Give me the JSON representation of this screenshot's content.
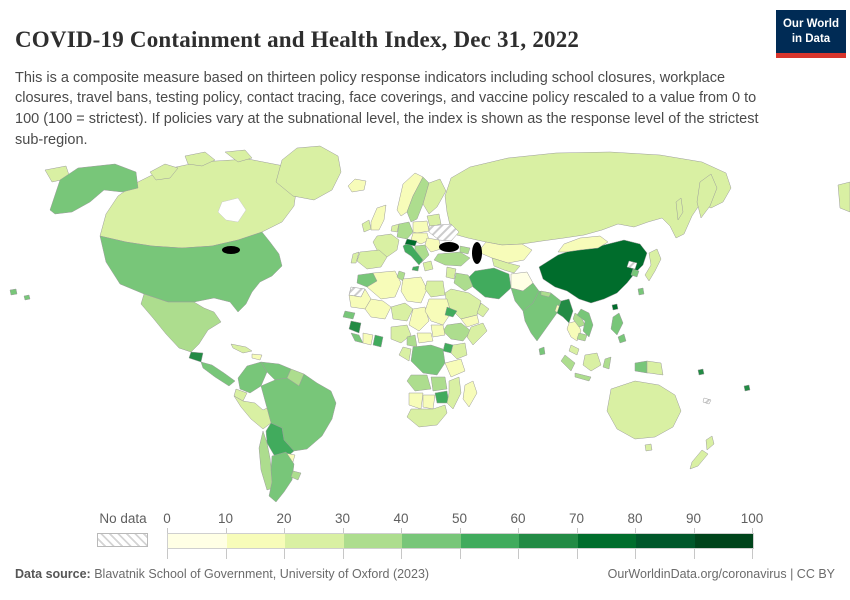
{
  "header": {
    "title": "COVID-19 Containment and Health Index, Dec 31, 2022",
    "subtitle": "This is a composite measure based on thirteen policy response indicators including school closures, workplace closures, travel bans, testing policy, contact tracing, face coverings, and vaccine policy rescaled to a value from 0 to 100 (100 = strictest). If policies vary at the subnational level, the index is shown as the response level of the strictest sub-region.",
    "logo": {
      "line1": "Our World",
      "line2": "in Data",
      "bg_color": "#002b55",
      "accent_color": "#d8352c"
    }
  },
  "legend": {
    "no_data_label": "No data",
    "ticks": [
      "0",
      "10",
      "20",
      "30",
      "40",
      "50",
      "60",
      "70",
      "80",
      "90",
      "100"
    ],
    "colors": [
      "#ffffe5",
      "#f7fcb9",
      "#d9f0a3",
      "#addd8e",
      "#78c679",
      "#41ab5d",
      "#238b45",
      "#006d2c",
      "#00572a",
      "#00441b"
    ]
  },
  "footer": {
    "source_label": "Data source:",
    "source_value": " Blavatnik School of Government, University of Oxford (2023)",
    "link": "OurWorldinData.org/coronavirus | CC BY"
  },
  "chart_data": {
    "type": "heatmap",
    "subtype": "choropleth-world-map",
    "title": "COVID-19 Containment and Health Index, Dec 31, 2022",
    "unit": "index 0–100 (100 = strictest)",
    "legend_bins": [
      0,
      10,
      20,
      30,
      40,
      50,
      60,
      70,
      80,
      90,
      100
    ],
    "palette": [
      "#ffffe5",
      "#f7fcb9",
      "#d9f0a3",
      "#addd8e",
      "#78c679",
      "#41ab5d",
      "#238b45",
      "#006d2c",
      "#00572a",
      "#00441b"
    ],
    "no_data_style": "hatched",
    "countries": [
      {
        "id": "usa",
        "name": "United States",
        "value_range": "40-50",
        "color": "#78c679"
      },
      {
        "id": "canada",
        "name": "Canada",
        "value_range": "20-30",
        "color": "#d9f0a3"
      },
      {
        "id": "greenland",
        "name": "Greenland",
        "value_range": "20-30",
        "color": "#d9f0a3"
      },
      {
        "id": "iceland",
        "name": "Iceland",
        "value_range": "10-20",
        "color": "#f7fcb9"
      },
      {
        "id": "mexico",
        "name": "Mexico",
        "value_range": "30-40",
        "color": "#addd8e"
      },
      {
        "id": "guatemala",
        "name": "Guatemala",
        "value_range": "60-70",
        "color": "#238b45"
      },
      {
        "id": "central-america",
        "name": "Central America",
        "value_range": "40-50",
        "color": "#78c679"
      },
      {
        "id": "cuba",
        "name": "Cuba",
        "value_range": "20-30",
        "color": "#d9f0a3"
      },
      {
        "id": "hispaniola",
        "name": "Haiti / Dominican Rep.",
        "value_range": "10-20",
        "color": "#f7fcb9"
      },
      {
        "id": "hawaii",
        "name": "Hawaii (US)",
        "value_range": "40-50",
        "color": "#78c679"
      },
      {
        "id": "colombia",
        "name": "Colombia",
        "value_range": "40-50",
        "color": "#78c679"
      },
      {
        "id": "venezuela",
        "name": "Venezuela",
        "value_range": "40-50",
        "color": "#78c679"
      },
      {
        "id": "guianas",
        "name": "Guyana / Suriname",
        "value_range": "30-40",
        "color": "#addd8e"
      },
      {
        "id": "brazil",
        "name": "Brazil",
        "value_range": "40-50",
        "color": "#78c679"
      },
      {
        "id": "ecuador",
        "name": "Ecuador",
        "value_range": "20-30",
        "color": "#d9f0a3"
      },
      {
        "id": "peru",
        "name": "Peru",
        "value_range": "20-30",
        "color": "#d9f0a3"
      },
      {
        "id": "bolivia",
        "name": "Bolivia",
        "value_range": "50-60",
        "color": "#41ab5d"
      },
      {
        "id": "paraguay",
        "name": "Paraguay",
        "value_range": "10-20",
        "color": "#f7fcb9"
      },
      {
        "id": "chile",
        "name": "Chile",
        "value_range": "30-40",
        "color": "#addd8e"
      },
      {
        "id": "argentina",
        "name": "Argentina",
        "value_range": "40-50",
        "color": "#78c679"
      },
      {
        "id": "uruguay",
        "name": "Uruguay",
        "value_range": "30-40",
        "color": "#addd8e"
      },
      {
        "id": "uk",
        "name": "United Kingdom",
        "value_range": "10-20",
        "color": "#f7fcb9"
      },
      {
        "id": "ireland",
        "name": "Ireland",
        "value_range": "20-30",
        "color": "#d9f0a3"
      },
      {
        "id": "norway",
        "name": "Norway",
        "value_range": "10-20",
        "color": "#f7fcb9"
      },
      {
        "id": "sweden",
        "name": "Sweden",
        "value_range": "30-40",
        "color": "#addd8e"
      },
      {
        "id": "finland",
        "name": "Finland",
        "value_range": "20-30",
        "color": "#d9f0a3"
      },
      {
        "id": "baltics",
        "name": "Baltics / Belarus",
        "value_range": "20-30",
        "color": "#d9f0a3"
      },
      {
        "id": "france",
        "name": "France",
        "value_range": "20-30",
        "color": "#d9f0a3"
      },
      {
        "id": "spain",
        "name": "Spain",
        "value_range": "20-30",
        "color": "#d9f0a3"
      },
      {
        "id": "portugal",
        "name": "Portugal",
        "value_range": "20-30",
        "color": "#d9f0a3"
      },
      {
        "id": "germany",
        "name": "Germany",
        "value_range": "30-40",
        "color": "#addd8e"
      },
      {
        "id": "benelux",
        "name": "Benelux",
        "value_range": "20-30",
        "color": "#d9f0a3"
      },
      {
        "id": "poland",
        "name": "Poland",
        "value_range": "10-20",
        "color": "#f7fcb9"
      },
      {
        "id": "czechia-hungary",
        "name": "Czechia / Slovakia / Hungary",
        "value_range": "10-20",
        "color": "#f7fcb9"
      },
      {
        "id": "italy",
        "name": "Italy",
        "value_range": "50-60",
        "color": "#41ab5d"
      },
      {
        "id": "austria-slovenia",
        "name": "Austria / Slovenia",
        "value_range": "70-80",
        "color": "#006d2c"
      },
      {
        "id": "balkans",
        "name": "Western Balkans",
        "value_range": "30-40",
        "color": "#addd8e"
      },
      {
        "id": "greece",
        "name": "Greece",
        "value_range": "20-30",
        "color": "#d9f0a3"
      },
      {
        "id": "romania-bulgaria",
        "name": "Romania / Bulgaria",
        "value_range": "10-20",
        "color": "#f7fcb9"
      },
      {
        "id": "ukraine",
        "name": "Ukraine",
        "value_range": "No data",
        "color": "nodata"
      },
      {
        "id": "russia",
        "name": "Russia",
        "value_range": "20-30",
        "color": "#d9f0a3"
      },
      {
        "id": "kazakhstan",
        "name": "Kazakhstan",
        "value_range": "10-20",
        "color": "#f7fcb9"
      },
      {
        "id": "turkey",
        "name": "Turkey",
        "value_range": "30-40",
        "color": "#addd8e"
      },
      {
        "id": "caucasus",
        "name": "Caucasus",
        "value_range": "30-40",
        "color": "#addd8e"
      },
      {
        "id": "levant",
        "name": "Syria / Levant",
        "value_range": "20-30",
        "color": "#d9f0a3"
      },
      {
        "id": "iraq",
        "name": "Iraq",
        "value_range": "30-40",
        "color": "#addd8e"
      },
      {
        "id": "iran",
        "name": "Iran",
        "value_range": "50-60",
        "color": "#41ab5d"
      },
      {
        "id": "saudi",
        "name": "Saudi Arabia",
        "value_range": "20-30",
        "color": "#d9f0a3"
      },
      {
        "id": "yemen",
        "name": "Yemen",
        "value_range": "10-20",
        "color": "#f7fcb9"
      },
      {
        "id": "oman",
        "name": "Oman",
        "value_range": "20-30",
        "color": "#d9f0a3"
      },
      {
        "id": "afghanistan",
        "name": "Afghanistan",
        "value_range": "0-10",
        "color": "#ffffe5"
      },
      {
        "id": "central-asia",
        "name": "Turkmenistan / Uzbekistan",
        "value_range": "20-30",
        "color": "#d9f0a3"
      },
      {
        "id": "pakistan",
        "name": "Pakistan",
        "value_range": "40-50",
        "color": "#78c679"
      },
      {
        "id": "india",
        "name": "India",
        "value_range": "40-50",
        "color": "#78c679"
      },
      {
        "id": "nepal",
        "name": "Nepal",
        "value_range": "30-40",
        "color": "#addd8e"
      },
      {
        "id": "bangladesh",
        "name": "Bangladesh",
        "value_range": "10-20",
        "color": "#f7fcb9"
      },
      {
        "id": "sri-lanka",
        "name": "Sri Lanka",
        "value_range": "40-50",
        "color": "#78c679"
      },
      {
        "id": "china",
        "name": "China",
        "value_range": "70-80",
        "color": "#006d2c"
      },
      {
        "id": "mongolia",
        "name": "Mongolia",
        "value_range": "10-20",
        "color": "#f7fcb9"
      },
      {
        "id": "myanmar",
        "name": "Myanmar",
        "value_range": "60-70",
        "color": "#238b45"
      },
      {
        "id": "thailand",
        "name": "Thailand",
        "value_range": "10-20",
        "color": "#f7fcb9"
      },
      {
        "id": "laos",
        "name": "Laos",
        "value_range": "30-40",
        "color": "#addd8e"
      },
      {
        "id": "vietnam",
        "name": "Vietnam",
        "value_range": "40-50",
        "color": "#78c679"
      },
      {
        "id": "cambodia",
        "name": "Cambodia",
        "value_range": "30-40",
        "color": "#addd8e"
      },
      {
        "id": "malaysia",
        "name": "Malaysia",
        "value_range": "20-30",
        "color": "#d9f0a3"
      },
      {
        "id": "north-korea",
        "name": "North Korea",
        "value_range": "No data",
        "color": "nodata"
      },
      {
        "id": "south-korea",
        "name": "South Korea",
        "value_range": "40-50",
        "color": "#78c679"
      },
      {
        "id": "japan",
        "name": "Japan",
        "value_range": "20-30",
        "color": "#d9f0a3"
      },
      {
        "id": "taiwan",
        "name": "Taiwan",
        "value_range": "40-50",
        "color": "#78c679"
      },
      {
        "id": "philippines",
        "name": "Philippines",
        "value_range": "40-50",
        "color": "#78c679"
      },
      {
        "id": "sumatra",
        "name": "Indonesia (Sumatra)",
        "value_range": "30-40",
        "color": "#addd8e"
      },
      {
        "id": "java",
        "name": "Indonesia (Java)",
        "value_range": "30-40",
        "color": "#addd8e"
      },
      {
        "id": "borneo",
        "name": "Borneo",
        "value_range": "20-30",
        "color": "#d9f0a3"
      },
      {
        "id": "sulawesi",
        "name": "Indonesia (Sulawesi)",
        "value_range": "30-40",
        "color": "#addd8e"
      },
      {
        "id": "papua-indonesia",
        "name": "Indonesia (Papua)",
        "value_range": "40-50",
        "color": "#78c679"
      },
      {
        "id": "png",
        "name": "Papua New Guinea",
        "value_range": "20-30",
        "color": "#d9f0a3"
      },
      {
        "id": "solomon",
        "name": "Solomon Islands",
        "value_range": "60-70",
        "color": "#238b45"
      },
      {
        "id": "fiji",
        "name": "Fiji",
        "value_range": "60-70",
        "color": "#238b45"
      },
      {
        "id": "new-caledonia",
        "name": "New Caledonia",
        "value_range": "No data",
        "color": "nodata"
      },
      {
        "id": "australia",
        "name": "Australia",
        "value_range": "20-30",
        "color": "#d9f0a3"
      },
      {
        "id": "new-zealand",
        "name": "New Zealand",
        "value_range": "20-30",
        "color": "#d9f0a3"
      },
      {
        "id": "morocco",
        "name": "Morocco",
        "value_range": "40-50",
        "color": "#78c679"
      },
      {
        "id": "w-sahara",
        "name": "Western Sahara",
        "value_range": "No data",
        "color": "nodata"
      },
      {
        "id": "algeria",
        "name": "Algeria",
        "value_range": "10-20",
        "color": "#f7fcb9"
      },
      {
        "id": "tunisia",
        "name": "Tunisia",
        "value_range": "30-40",
        "color": "#addd8e"
      },
      {
        "id": "libya",
        "name": "Libya",
        "value_range": "10-20",
        "color": "#f7fcb9"
      },
      {
        "id": "egypt",
        "name": "Egypt",
        "value_range": "20-30",
        "color": "#d9f0a3"
      },
      {
        "id": "mauritania",
        "name": "Mauritania",
        "value_range": "10-20",
        "color": "#f7fcb9"
      },
      {
        "id": "mali",
        "name": "Mali",
        "value_range": "10-20",
        "color": "#f7fcb9"
      },
      {
        "id": "niger",
        "name": "Niger",
        "value_range": "20-30",
        "color": "#d9f0a3"
      },
      {
        "id": "chad",
        "name": "Chad",
        "value_range": "10-20",
        "color": "#f7fcb9"
      },
      {
        "id": "sudan",
        "name": "Sudan",
        "value_range": "10-20",
        "color": "#f7fcb9"
      },
      {
        "id": "eritrea",
        "name": "Eritrea",
        "value_range": "50-60",
        "color": "#41ab5d"
      },
      {
        "id": "ethiopia",
        "name": "Ethiopia",
        "value_range": "30-40",
        "color": "#addd8e"
      },
      {
        "id": "somalia",
        "name": "Somalia",
        "value_range": "20-30",
        "color": "#d9f0a3"
      },
      {
        "id": "senegal",
        "name": "Senegal",
        "value_range": "40-50",
        "color": "#78c679"
      },
      {
        "id": "guinea",
        "name": "Guinea",
        "value_range": "60-70",
        "color": "#238b45"
      },
      {
        "id": "sierra-liberia",
        "name": "Sierra Leone / Liberia",
        "value_range": "40-50",
        "color": "#78c679"
      },
      {
        "id": "ivory-coast",
        "name": "Côte d'Ivoire",
        "value_range": "10-20",
        "color": "#f7fcb9"
      },
      {
        "id": "ghana",
        "name": "Ghana",
        "value_range": "50-60",
        "color": "#41ab5d"
      },
      {
        "id": "nigeria",
        "name": "Nigeria",
        "value_range": "20-30",
        "color": "#d9f0a3"
      },
      {
        "id": "cameroon",
        "name": "Cameroon",
        "value_range": "30-40",
        "color": "#addd8e"
      },
      {
        "id": "car",
        "name": "Central African Republic",
        "value_range": "10-20",
        "color": "#f7fcb9"
      },
      {
        "id": "south-sudan",
        "name": "South Sudan",
        "value_range": "10-20",
        "color": "#f7fcb9"
      },
      {
        "id": "drc",
        "name": "DR Congo",
        "value_range": "40-50",
        "color": "#78c679"
      },
      {
        "id": "congo-gabon",
        "name": "Congo / Gabon",
        "value_range": "20-30",
        "color": "#d9f0a3"
      },
      {
        "id": "uganda",
        "name": "Uganda",
        "value_range": "50-60",
        "color": "#41ab5d"
      },
      {
        "id": "kenya",
        "name": "Kenya",
        "value_range": "20-30",
        "color": "#d9f0a3"
      },
      {
        "id": "tanzania",
        "name": "Tanzania",
        "value_range": "10-20",
        "color": "#f7fcb9"
      },
      {
        "id": "angola",
        "name": "Angola",
        "value_range": "30-40",
        "color": "#addd8e"
      },
      {
        "id": "zambia",
        "name": "Zambia",
        "value_range": "30-40",
        "color": "#addd8e"
      },
      {
        "id": "zimbabwe",
        "name": "Zimbabwe",
        "value_range": "50-60",
        "color": "#41ab5d"
      },
      {
        "id": "mozambique",
        "name": "Mozambique",
        "value_range": "20-30",
        "color": "#d9f0a3"
      },
      {
        "id": "namibia",
        "name": "Namibia",
        "value_range": "10-20",
        "color": "#f7fcb9"
      },
      {
        "id": "botswana",
        "name": "Botswana",
        "value_range": "10-20",
        "color": "#f7fcb9"
      },
      {
        "id": "south-africa",
        "name": "South Africa",
        "value_range": "20-30",
        "color": "#d9f0a3"
      },
      {
        "id": "madagascar",
        "name": "Madagascar",
        "value_range": "10-20",
        "color": "#f7fcb9"
      }
    ]
  }
}
